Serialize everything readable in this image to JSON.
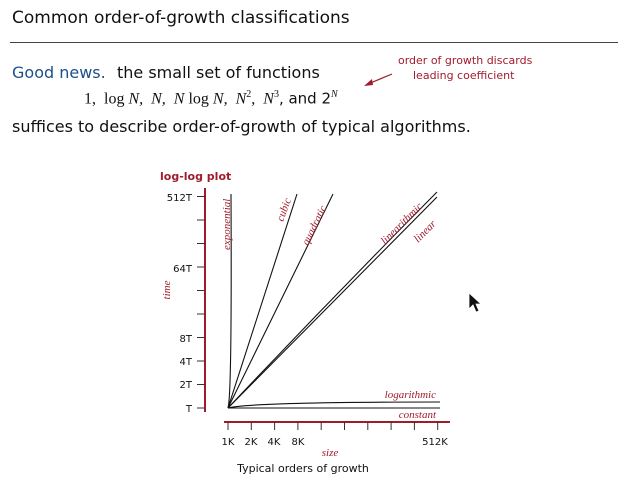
{
  "header": {
    "title": "Common order-of-growth classifications"
  },
  "body": {
    "lead": "Good news.",
    "line1": "the small set of functions",
    "formula": [
      "1,",
      "log",
      "N,",
      "N,",
      "N",
      "log",
      "N,",
      "N",
      "2",
      ",",
      "N",
      "3",
      ", and 2",
      "N"
    ],
    "line2": "suffices to describe order-of-growth of typical algorithms."
  },
  "annotation": [
    "order of growth discards",
    "leading coefficient"
  ],
  "plot": {
    "title": "log-log plot",
    "y_label": "time",
    "x_label": "size",
    "caption": "Typical orders of growth",
    "yticks": [
      "512T",
      "64T",
      "8T",
      "4T",
      "2T",
      "T"
    ],
    "xticks": [
      "1K",
      "2K",
      "4K",
      "8K",
      "512K"
    ],
    "curves": [
      "exponential",
      "cubic",
      "quadratic",
      "linearithmic",
      "linear",
      "logarithmic",
      "constant"
    ]
  }
}
